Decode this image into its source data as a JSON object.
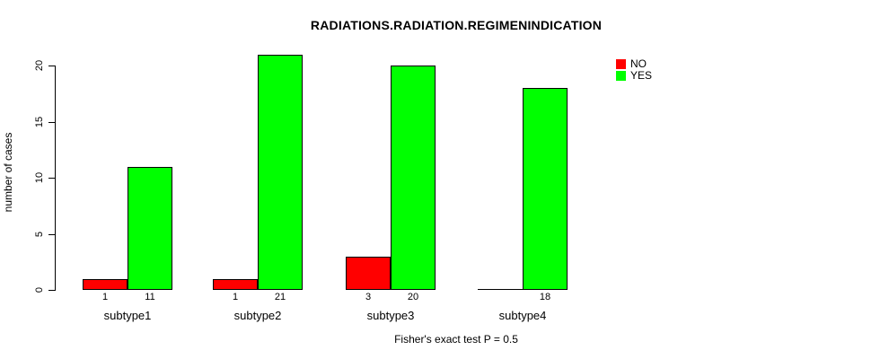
{
  "chart_data": {
    "type": "bar",
    "title": "RADIATIONS.RADIATION.REGIMENINDICATION",
    "ylabel": "number of cases",
    "xlabel": "",
    "categories": [
      "subtype1",
      "subtype2",
      "subtype3",
      "subtype4"
    ],
    "series": [
      {
        "name": "NO",
        "color": "#ff0000",
        "values": [
          1,
          1,
          3,
          0
        ]
      },
      {
        "name": "YES",
        "color": "#00ff00",
        "values": [
          11,
          21,
          20,
          18
        ]
      }
    ],
    "bar_value_labels": [
      [
        "1",
        "11"
      ],
      [
        "1",
        "21"
      ],
      [
        "3",
        "20"
      ],
      [
        "",
        "18"
      ]
    ],
    "yticks": [
      0,
      5,
      10,
      15,
      20
    ],
    "ylim": [
      0,
      21
    ],
    "grid": false,
    "legend": {
      "position": "top-right",
      "entries": [
        "NO",
        "YES"
      ]
    },
    "annotation": "Fisher's exact test P = 0.5"
  },
  "colors": {
    "no": "#ff0000",
    "yes": "#00ff00",
    "axis": "#000000",
    "background": "#ffffff"
  }
}
